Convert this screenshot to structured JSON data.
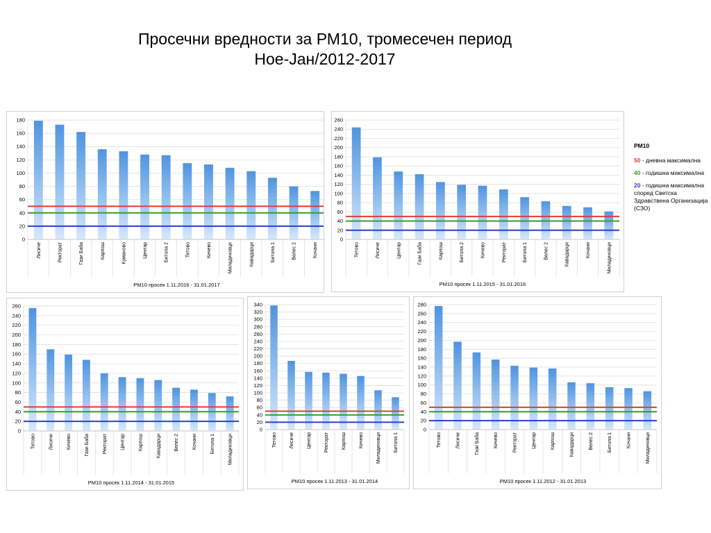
{
  "title": {
    "line1": "Просечни вредности за РМ10, тромесечен период",
    "line2": "Ное-Јан/2012-2017"
  },
  "colors": {
    "bar_top": "#4f94e0",
    "bar_bottom": "#d6e8fb",
    "grid": "#d9d9d9",
    "daily_limit": "#e03b3b",
    "annual_limit": "#3a9a2a",
    "who_limit": "#2a3fc8"
  },
  "legend": {
    "title": "PM10",
    "items": [
      {
        "value": "50",
        "text": " - дневна максимална",
        "color": "#e03b3b"
      },
      {
        "value": "40",
        "text": " - годишна максимална",
        "color": "#3a9a2a"
      },
      {
        "value": "20",
        "text": " - годишна максимална според Светска Здравствена Организација (СЗО)",
        "color": "#2a3fc8"
      }
    ]
  },
  "chart_data": [
    {
      "type": "bar",
      "xlabel": "PM10 просек 1.11.2016 - 31.01.2017",
      "categories": [
        "Лисиче",
        "Ректорат",
        "Гази Баба",
        "Карпош",
        "Куманово",
        "Центар",
        "Битола 2",
        "Тетово",
        "Кичево",
        "Миладиновци",
        "Кавадарци",
        "Битола 1",
        "Велес 2",
        "Кочани"
      ],
      "values": [
        179,
        173,
        162,
        136,
        133,
        128,
        127,
        115,
        113,
        108,
        103,
        93,
        80,
        73
      ],
      "ylim": [
        0,
        180
      ],
      "yticks": [
        "0",
        "20",
        "40",
        "60",
        "80",
        "100",
        "120",
        "140",
        "160",
        "180"
      ],
      "limits": [
        50,
        40,
        20
      ]
    },
    {
      "type": "bar",
      "xlabel": "PM10 просек 1.11.2015 - 31.01.2016",
      "categories": [
        "Тетово",
        "Лисиче",
        "Центар",
        "Гази Баба",
        "Карпош",
        "Битола 2",
        "Кичево",
        "Ректорат",
        "Битола 1",
        "Велес 2",
        "Кавадарци",
        "Кочани",
        "Миладиновци"
      ],
      "values": [
        244,
        179,
        148,
        142,
        125,
        119,
        117,
        109,
        92,
        83,
        73,
        70,
        61
      ],
      "ylim": [
        0,
        260
      ],
      "yticks": [
        "0",
        "20",
        "40",
        "60",
        "80",
        "100",
        "120",
        "140",
        "160",
        "180",
        "200",
        "220",
        "240",
        "260"
      ],
      "limits": [
        50,
        40,
        20
      ]
    },
    {
      "type": "bar",
      "xlabel": "PM10 просек  1.11.2014 - 31.01.2015",
      "categories": [
        "Тетово",
        "Лисиче",
        "Кичево",
        "Гази Баба",
        "Ректорат",
        "Центар",
        "Карпош",
        "Кавадарци",
        "Велес 2",
        "Кочани",
        "Битола 1",
        "Миладиновци"
      ],
      "values": [
        256,
        170,
        159,
        148,
        120,
        112,
        110,
        106,
        90,
        86,
        79,
        72
      ],
      "ylim": [
        0,
        260
      ],
      "yticks": [
        "0",
        "20",
        "40",
        "60",
        "80",
        "100",
        "120",
        "140",
        "160",
        "180",
        "200",
        "220",
        "240",
        "260"
      ],
      "limits": [
        50,
        40,
        20
      ]
    },
    {
      "type": "bar",
      "xlabel": "PM10 просек  1.11.2013 - 31.01.2014",
      "categories": [
        "Тетово",
        "Лисиче",
        "Центар",
        "Ректорат",
        "Карпош",
        "Кичево",
        "Миладиновци",
        "Битола 1"
      ],
      "values": [
        338,
        187,
        157,
        155,
        152,
        146,
        107,
        88
      ],
      "ylim": [
        0,
        340
      ],
      "yticks": [
        "0",
        "20",
        "40",
        "60",
        "80",
        "100",
        "120",
        "140",
        "160",
        "180",
        "200",
        "220",
        "240",
        "260",
        "280",
        "300",
        "320",
        "340"
      ],
      "limits": [
        50,
        40,
        20
      ]
    },
    {
      "type": "bar",
      "xlabel": "PM10 просек  1.11.2012 - 31.01.2013",
      "categories": [
        "Тетово",
        "Лисиче",
        "Гази Баба",
        "Кичево",
        "Ректорат",
        "Центар",
        "Карпош",
        "Кавадарци",
        "Велес 2",
        "Битола 1",
        "Кочани",
        "Миладиновци"
      ],
      "values": [
        277,
        197,
        173,
        157,
        143,
        139,
        137,
        106,
        104,
        95,
        93,
        86
      ],
      "ylim": [
        0,
        280
      ],
      "yticks": [
        "0",
        "20",
        "40",
        "60",
        "80",
        "100",
        "120",
        "140",
        "160",
        "180",
        "200",
        "220",
        "240",
        "260",
        "280"
      ],
      "limits": [
        50,
        40,
        20
      ]
    }
  ]
}
